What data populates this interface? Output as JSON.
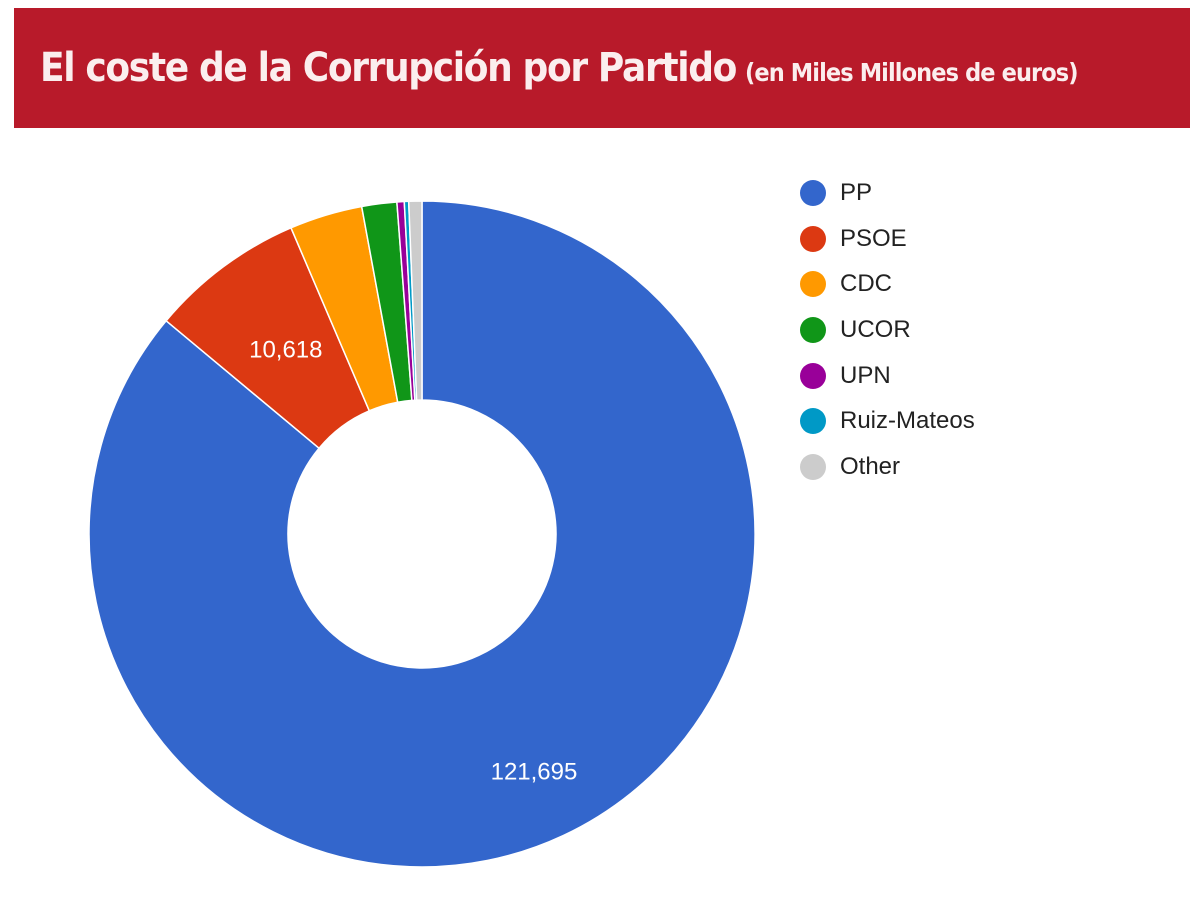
{
  "header": {
    "title": "El coste de la Corrupción por Partido",
    "subtitle": "(en Miles Millones de euros)",
    "background": "#b81a2a"
  },
  "chart_data": {
    "type": "pie",
    "donut": true,
    "legend_position": "right",
    "series": [
      {
        "name": "PP",
        "value": 121695,
        "color": "#3366cc",
        "label": "121,695"
      },
      {
        "name": "PSOE",
        "value": 10618,
        "color": "#dc3912",
        "label": "10,618"
      },
      {
        "name": "CDC",
        "value": 5000,
        "color": "#ff9900",
        "label": ""
      },
      {
        "name": "UCOR",
        "value": 2400,
        "color": "#109618",
        "label": ""
      },
      {
        "name": "UPN",
        "value": 500,
        "color": "#990099",
        "label": ""
      },
      {
        "name": "Ruiz-Mateos",
        "value": 300,
        "color": "#0099c6",
        "label": ""
      },
      {
        "name": "Other",
        "value": 900,
        "color": "#cccccc",
        "label": ""
      }
    ]
  }
}
